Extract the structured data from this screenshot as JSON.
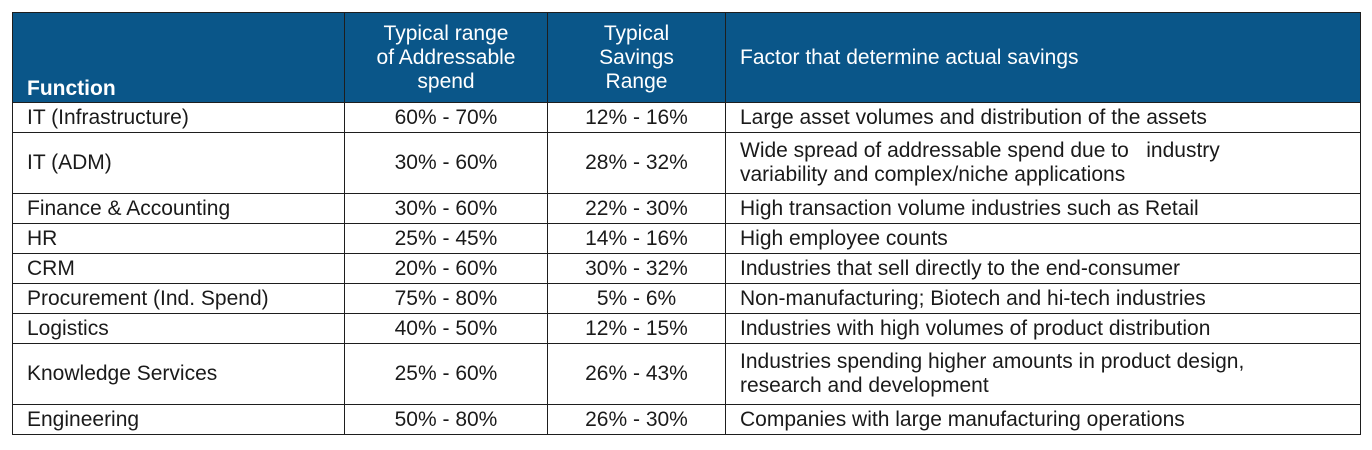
{
  "headers": {
    "function": "Function",
    "addressable_lines": [
      "Typical range",
      "of Addressable",
      "spend"
    ],
    "savings_lines": [
      "Typical",
      "Savings",
      "Range"
    ],
    "factor": "Factor that determine actual savings"
  },
  "rows": [
    {
      "function": "IT (Infrastructure)",
      "addressable": "60% - 70%",
      "savings": "12% - 16%",
      "factor_lines": [
        "Large asset volumes and distribution of the assets"
      ]
    },
    {
      "function": "IT (ADM)",
      "addressable": "30% - 60%",
      "savings": "28% - 32%",
      "factor_lines": [
        "Wide spread of addressable spend due to   industry",
        "variability and complex/niche applications"
      ]
    },
    {
      "function": "Finance & Accounting",
      "addressable": "30% - 60%",
      "savings": "22% - 30%",
      "factor_lines": [
        "High transaction volume industries such as Retail"
      ]
    },
    {
      "function": "HR",
      "addressable": "25% - 45%",
      "savings": "14% - 16%",
      "factor_lines": [
        "High employee counts"
      ]
    },
    {
      "function": "CRM",
      "addressable": "20% - 60%",
      "savings": "30% - 32%",
      "factor_lines": [
        "Industries that sell directly to the end-consumer"
      ]
    },
    {
      "function": "Procurement (Ind. Spend)",
      "addressable": "75% - 80%",
      "savings": "5% - 6%",
      "factor_lines": [
        "Non-manufacturing; Biotech and hi-tech industries"
      ]
    },
    {
      "function": "Logistics",
      "addressable": "40% - 50%",
      "savings": "12% - 15%",
      "factor_lines": [
        "Industries with high volumes of product distribution"
      ]
    },
    {
      "function": "Knowledge Services",
      "addressable": "25% - 60%",
      "savings": "26% - 43%",
      "factor_lines": [
        "Industries spending higher amounts in product design,",
        "research and development"
      ]
    },
    {
      "function": "Engineering",
      "addressable": "50% - 80%",
      "savings": "26% - 30%",
      "factor_lines": [
        "Companies with large manufacturing operations"
      ]
    }
  ],
  "colors": {
    "header_bg": "#0a5689",
    "header_text": "#ffffff",
    "border": "#1e1e1e"
  }
}
